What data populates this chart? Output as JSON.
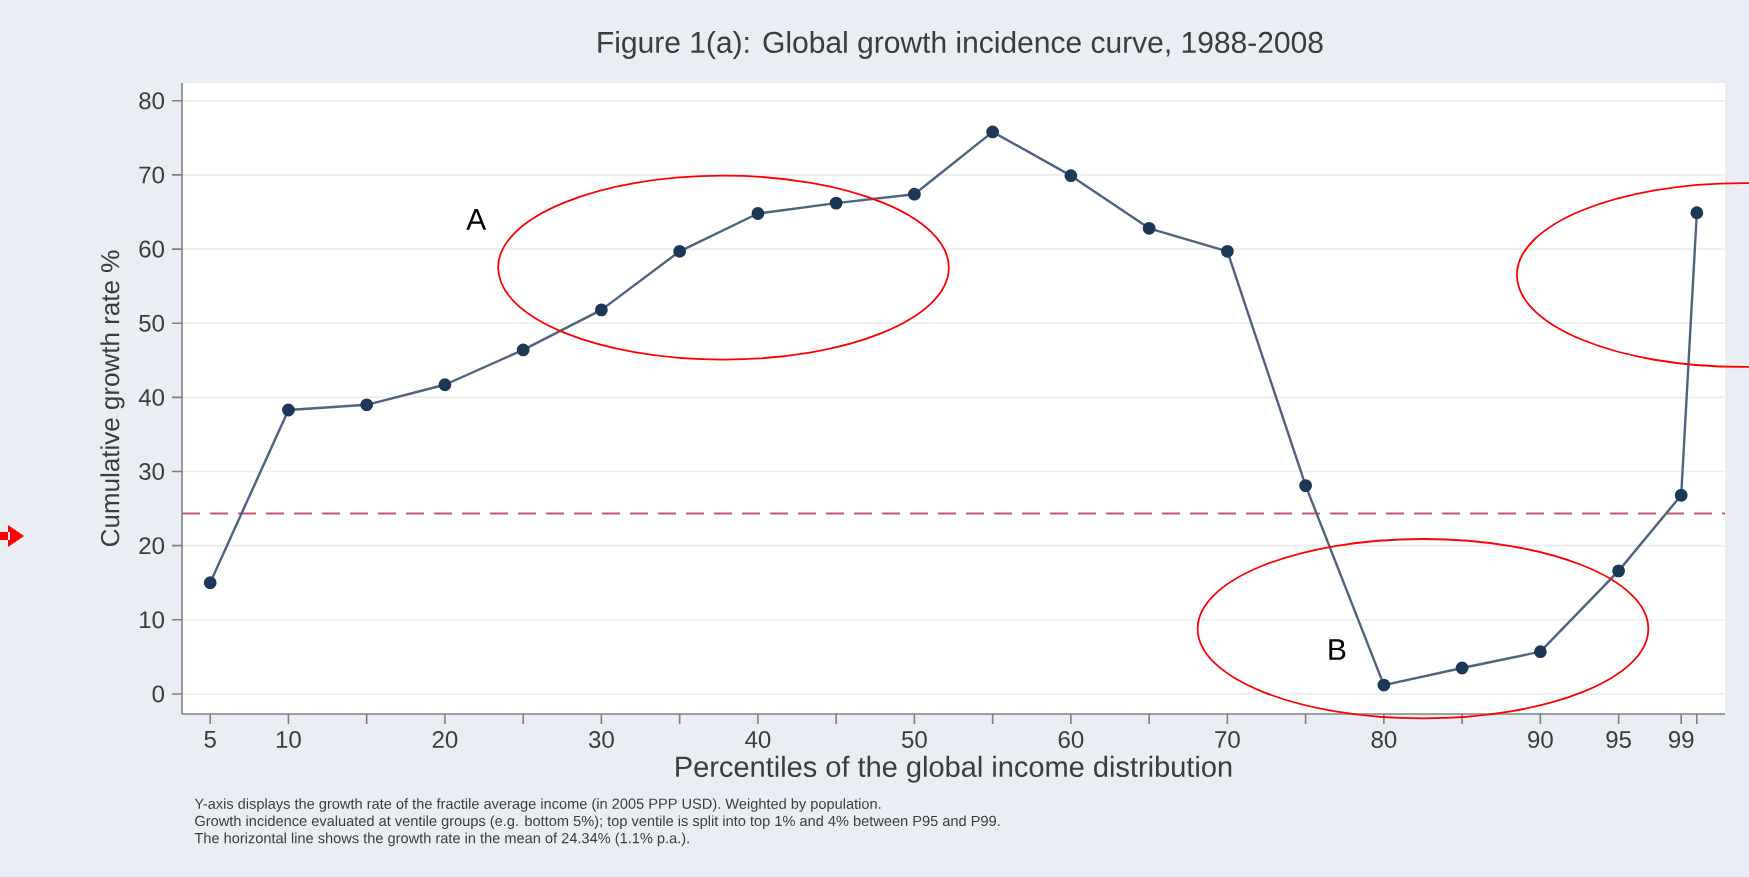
{
  "chart_data": {
    "type": "line",
    "title": "Figure 1(a): Global growth incidence curve, 1988-2008",
    "xlabel": "Percentiles of the global income distribution",
    "ylabel": "Cumulative growth rate %",
    "x": [
      5,
      10,
      15,
      20,
      25,
      30,
      35,
      40,
      45,
      50,
      55,
      60,
      65,
      70,
      75,
      80,
      85,
      90,
      95,
      99,
      100
    ],
    "values": [
      15,
      38.3,
      39,
      41.7,
      46.4,
      51.8,
      59.7,
      64.8,
      66.2,
      67.4,
      75.8,
      69.9,
      62.8,
      59.7,
      28.1,
      1.2,
      3.5,
      5.7,
      16.6,
      26.8,
      64.9
    ],
    "color": "#4d6382",
    "marker": "circle",
    "line_style": "solid",
    "grid": "y",
    "xlim": [
      3.2,
      101.8
    ],
    "ylim": [
      -2.7,
      82.4
    ],
    "xticks": [
      5,
      10,
      {
        "value": 15,
        "label": null
      },
      20,
      {
        "value": 25,
        "label": null
      },
      30,
      {
        "value": 35,
        "label": null
      },
      40,
      {
        "value": 45,
        "label": null
      },
      50,
      {
        "value": 55,
        "label": null
      },
      60,
      {
        "value": 65,
        "label": null
      },
      70,
      {
        "value": 75,
        "label": null
      },
      80,
      {
        "value": 85,
        "label": null
      },
      90,
      95,
      99,
      {
        "value": 100,
        "label": null
      }
    ],
    "yticks": [
      0,
      10,
      20,
      30,
      40,
      50,
      60,
      70,
      80
    ],
    "ref_lines": [
      {
        "axis": "y",
        "value": 24.34,
        "color": "#c8557a",
        "line_style": "dashed"
      }
    ],
    "annotations": [
      "A",
      "B",
      "Y-axis displays the growth rate of the fractile average income (in 2005 PPP USD). Weighted by population.",
      "Growth incidence evaluated at ventile groups (e.g. bottom 5%); top ventile is split into top 1% and 4% between P95 and P99.",
      "The horizontal line shows the growth rate in the mean of 24.34% (1.1% p.a.)."
    ]
  }
}
